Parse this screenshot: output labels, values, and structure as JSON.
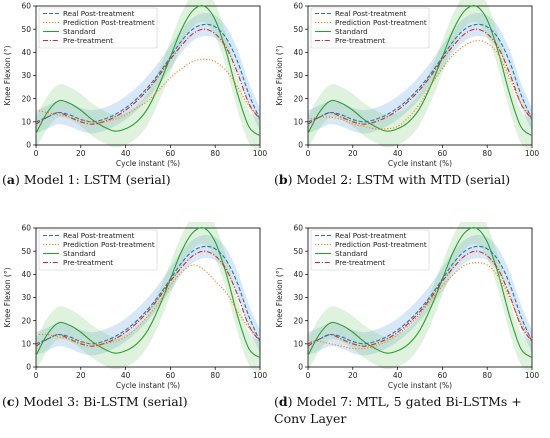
{
  "chart_data": [
    {
      "type": "line",
      "caption": {
        "letter": "a",
        "text": "Model 1: LSTM (serial)"
      },
      "xlabel": "Cycle instant (%)",
      "ylabel": "Knee Flexion (°)",
      "xlim": [
        0,
        100
      ],
      "ylim": [
        0,
        60
      ],
      "xticks": [
        0,
        20,
        40,
        60,
        80,
        100
      ],
      "yticks": [
        0,
        10,
        20,
        30,
        40,
        50,
        60
      ],
      "legend_position": "top-left",
      "x": [
        0,
        5,
        10,
        15,
        20,
        25,
        30,
        35,
        40,
        45,
        50,
        55,
        60,
        65,
        70,
        75,
        80,
        85,
        90,
        95,
        100
      ],
      "series": [
        {
          "name": "Real Post-treatment",
          "color": "#1f77b4",
          "dash": "dashed",
          "values": [
            10,
            12,
            14,
            13,
            11,
            10,
            11,
            13,
            16,
            20,
            25,
            31,
            38,
            45,
            50,
            52,
            51,
            46,
            36,
            22,
            11
          ],
          "band": 5
        },
        {
          "name": "Prediction Post-treatment",
          "color": "#ff7f0e",
          "dash": "dotted",
          "values": [
            15,
            14,
            13,
            12,
            11,
            10,
            10,
            11,
            13,
            16,
            19,
            24,
            29,
            33,
            36,
            37,
            36,
            32,
            25,
            17,
            12
          ]
        },
        {
          "name": "Standard",
          "color": "#2ca02c",
          "dash": "solid",
          "values": [
            5,
            14,
            19,
            18,
            15,
            11,
            8,
            6,
            7,
            10,
            16,
            26,
            38,
            50,
            58,
            60,
            54,
            40,
            22,
            8,
            4
          ],
          "band": 7
        },
        {
          "name": "Pre-treatment",
          "color": "#d62728",
          "dash": "dashdot",
          "values": [
            9,
            12,
            14,
            12,
            10,
            9,
            10,
            12,
            15,
            19,
            24,
            30,
            37,
            43,
            48,
            50,
            48,
            42,
            31,
            18,
            11
          ],
          "band": 6
        }
      ]
    },
    {
      "type": "line",
      "caption": {
        "letter": "b",
        "text": "Model 2: LSTM with MTD (serial)"
      },
      "xlabel": "Cycle instant (%)",
      "ylabel": "Knee Flexion (°)",
      "xlim": [
        0,
        100
      ],
      "ylim": [
        0,
        60
      ],
      "xticks": [
        0,
        20,
        40,
        60,
        80,
        100
      ],
      "yticks": [
        0,
        10,
        20,
        30,
        40,
        50,
        60
      ],
      "legend_position": "top-left",
      "x": [
        0,
        5,
        10,
        15,
        20,
        25,
        30,
        35,
        40,
        45,
        50,
        55,
        60,
        65,
        70,
        75,
        80,
        85,
        90,
        95,
        100
      ],
      "series": [
        {
          "name": "Real Post-treatment",
          "color": "#1f77b4",
          "dash": "dashed",
          "values": [
            10,
            12,
            14,
            13,
            11,
            10,
            11,
            13,
            16,
            20,
            25,
            31,
            38,
            45,
            50,
            52,
            51,
            46,
            36,
            22,
            11
          ],
          "band": 5
        },
        {
          "name": "Prediction Post-treatment",
          "color": "#ff7f0e",
          "dash": "dotted",
          "values": [
            11,
            12,
            12,
            11,
            9,
            8,
            7,
            7,
            8,
            12,
            18,
            26,
            33,
            39,
            43,
            45,
            44,
            39,
            29,
            18,
            12
          ]
        },
        {
          "name": "Standard",
          "color": "#2ca02c",
          "dash": "solid",
          "values": [
            5,
            14,
            19,
            18,
            15,
            11,
            8,
            6,
            7,
            10,
            16,
            26,
            38,
            50,
            58,
            60,
            54,
            40,
            22,
            8,
            4
          ],
          "band": 7
        },
        {
          "name": "Pre-treatment",
          "color": "#d62728",
          "dash": "dashdot",
          "values": [
            9,
            12,
            14,
            12,
            10,
            9,
            10,
            12,
            15,
            19,
            24,
            30,
            37,
            43,
            48,
            50,
            48,
            42,
            31,
            18,
            11
          ],
          "band": 6
        }
      ]
    },
    {
      "type": "line",
      "caption": {
        "letter": "c",
        "text": "Model 3: Bi-LSTM (serial)"
      },
      "xlabel": "Cycle instant (%)",
      "ylabel": "Knee Flexion (°)",
      "xlim": [
        0,
        100
      ],
      "ylim": [
        0,
        60
      ],
      "xticks": [
        0,
        20,
        40,
        60,
        80,
        100
      ],
      "yticks": [
        0,
        10,
        20,
        30,
        40,
        50,
        60
      ],
      "legend_position": "top-left",
      "x": [
        0,
        5,
        10,
        15,
        20,
        25,
        30,
        35,
        40,
        45,
        50,
        55,
        60,
        65,
        70,
        75,
        80,
        85,
        90,
        95,
        100
      ],
      "series": [
        {
          "name": "Real Post-treatment",
          "color": "#1f77b4",
          "dash": "dashed",
          "values": [
            10,
            12,
            14,
            13,
            11,
            10,
            11,
            13,
            16,
            20,
            25,
            31,
            38,
            45,
            50,
            52,
            51,
            46,
            36,
            22,
            11
          ],
          "band": 5
        },
        {
          "name": "Prediction Post-treatment",
          "color": "#ff7f0e",
          "dash": "dotted",
          "values": [
            14,
            14,
            13,
            12,
            11,
            10,
            10,
            11,
            13,
            17,
            22,
            28,
            35,
            41,
            44,
            42,
            37,
            32,
            24,
            17,
            13
          ]
        },
        {
          "name": "Standard",
          "color": "#2ca02c",
          "dash": "solid",
          "values": [
            5,
            14,
            19,
            18,
            15,
            11,
            8,
            6,
            7,
            10,
            16,
            26,
            38,
            50,
            58,
            60,
            54,
            40,
            22,
            8,
            4
          ],
          "band": 7
        },
        {
          "name": "Pre-treatment",
          "color": "#d62728",
          "dash": "dashdot",
          "values": [
            9,
            12,
            14,
            12,
            10,
            9,
            10,
            12,
            15,
            19,
            24,
            30,
            37,
            43,
            48,
            50,
            48,
            42,
            31,
            18,
            11
          ],
          "band": 6
        }
      ]
    },
    {
      "type": "line",
      "caption": {
        "letter": "d",
        "text": "Model 7: MTL, 5 gated Bi-LSTMs + Conv Layer"
      },
      "xlabel": "Cycle instant (%)",
      "ylabel": "Knee Flexion (°)",
      "xlim": [
        0,
        100
      ],
      "ylim": [
        0,
        60
      ],
      "xticks": [
        0,
        20,
        40,
        60,
        80,
        100
      ],
      "yticks": [
        0,
        10,
        20,
        30,
        40,
        50,
        60
      ],
      "legend_position": "top-left",
      "x": [
        0,
        5,
        10,
        15,
        20,
        25,
        30,
        35,
        40,
        45,
        50,
        55,
        60,
        65,
        70,
        75,
        80,
        85,
        90,
        95,
        100
      ],
      "series": [
        {
          "name": "Real Post-treatment",
          "color": "#1f77b4",
          "dash": "dashed",
          "values": [
            10,
            12,
            14,
            13,
            11,
            10,
            11,
            13,
            16,
            20,
            25,
            31,
            38,
            45,
            50,
            52,
            51,
            46,
            36,
            22,
            11
          ],
          "band": 5
        },
        {
          "name": "Prediction Post-treatment",
          "color": "#ff7f0e",
          "dash": "dotted",
          "values": [
            11,
            11,
            10,
            9,
            8,
            8,
            9,
            11,
            14,
            18,
            23,
            29,
            35,
            40,
            44,
            45,
            44,
            39,
            30,
            19,
            12
          ]
        },
        {
          "name": "Standard",
          "color": "#2ca02c",
          "dash": "solid",
          "values": [
            5,
            14,
            19,
            18,
            15,
            11,
            8,
            6,
            7,
            10,
            16,
            26,
            38,
            50,
            58,
            60,
            54,
            40,
            22,
            8,
            4
          ],
          "band": 7
        },
        {
          "name": "Pre-treatment",
          "color": "#d62728",
          "dash": "dashdot",
          "values": [
            9,
            12,
            14,
            12,
            10,
            9,
            10,
            12,
            15,
            19,
            24,
            30,
            37,
            43,
            48,
            50,
            48,
            42,
            31,
            18,
            11
          ],
          "band": 6
        }
      ]
    }
  ]
}
